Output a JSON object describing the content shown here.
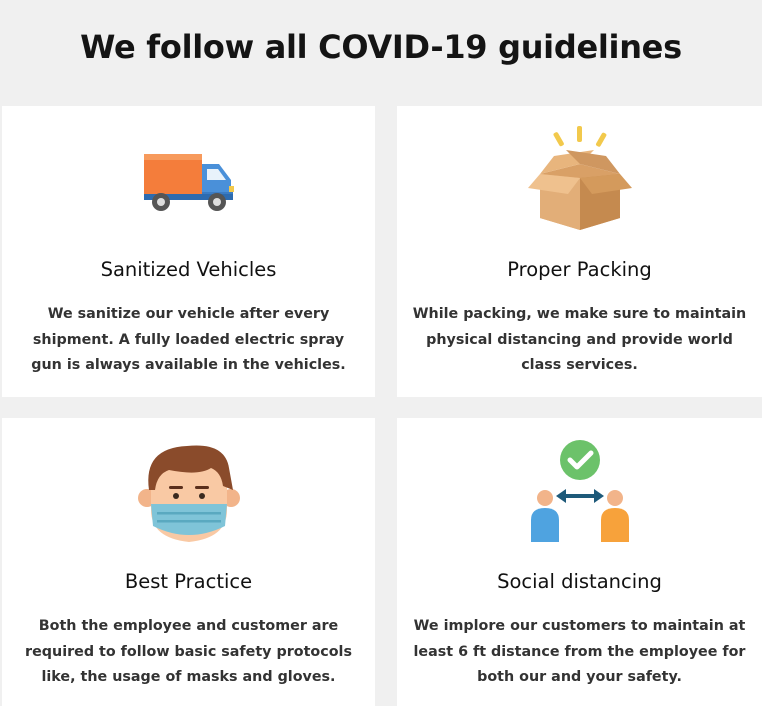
{
  "page": {
    "headline": "We follow all COVID-19 guidelines"
  },
  "cards": [
    {
      "icon": "delivery-truck-icon",
      "title": "Sanitized Vehicles",
      "lines": [
        "We sanitize our vehicle  after every",
        "shipment. A fully loaded electric spray",
        "gun is always available in the vehicles."
      ]
    },
    {
      "icon": "open-box-icon",
      "title": "Proper Packing",
      "lines": [
        "While packing, we make sure to maintain",
        "physical distancing and provide world",
        "class services."
      ]
    },
    {
      "icon": "masked-person-icon",
      "title": "Best Practice",
      "lines": [
        "Both the employee and customer are",
        "required to follow basic safety protocols",
        "like, the usage of masks and gloves."
      ]
    },
    {
      "icon": "social-distancing-icon",
      "title": "Social distancing",
      "lines": [
        "We implore our customers to maintain at",
        "least 6 ft distance from the employee for",
        "both our and your safety."
      ]
    }
  ],
  "colors": {
    "page_background": "#f0f0f0",
    "card_background": "#ffffff",
    "headline": "#141414",
    "body_text": "#333333"
  }
}
